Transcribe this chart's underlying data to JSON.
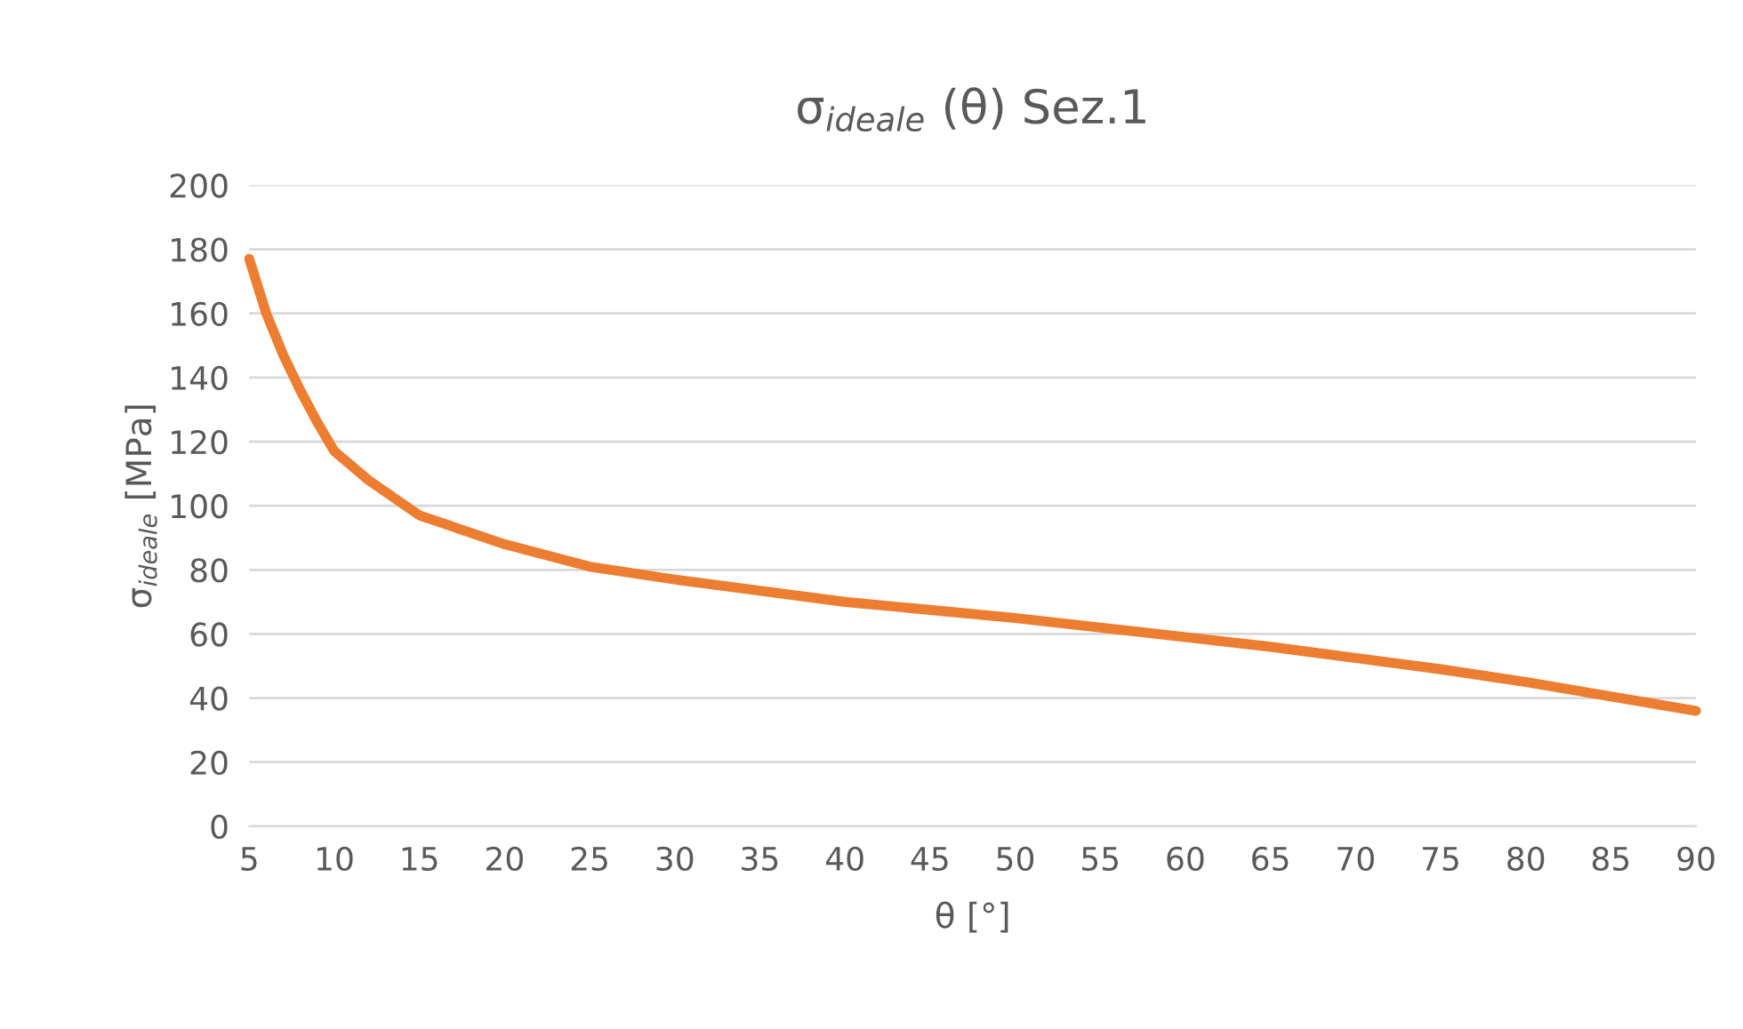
{
  "chart_data": {
    "type": "line",
    "title": "σ$_{ideale}$ (θ) Sez.1",
    "xlabel": "θ [°]",
    "ylabel": "σ$_{ideale}$ [MPa]",
    "series": [
      {
        "color": "#ed7d31",
        "x": [
          5,
          6,
          7,
          8,
          9,
          10,
          12,
          15,
          20,
          25,
          30,
          35,
          40,
          45,
          50,
          55,
          60,
          65,
          70,
          75,
          80,
          85,
          90
        ],
        "values": [
          177,
          160,
          147,
          136,
          126,
          117,
          108,
          97,
          88,
          81,
          77,
          73.5,
          70,
          67.5,
          65,
          62,
          59,
          56,
          52.5,
          49,
          45,
          40.5,
          36
        ]
      }
    ],
    "xlim": [
      5,
      90
    ],
    "xticks": [
      5,
      10,
      15,
      20,
      25,
      30,
      35,
      40,
      45,
      50,
      55,
      60,
      65,
      70,
      75,
      80,
      85,
      90
    ],
    "ylim": [
      0,
      200
    ],
    "yticks": [
      0,
      20,
      40,
      60,
      80,
      100,
      120,
      140,
      160,
      180,
      200
    ],
    "grid": "y",
    "marker": "none",
    "line_style": "solid",
    "legend": false
  }
}
